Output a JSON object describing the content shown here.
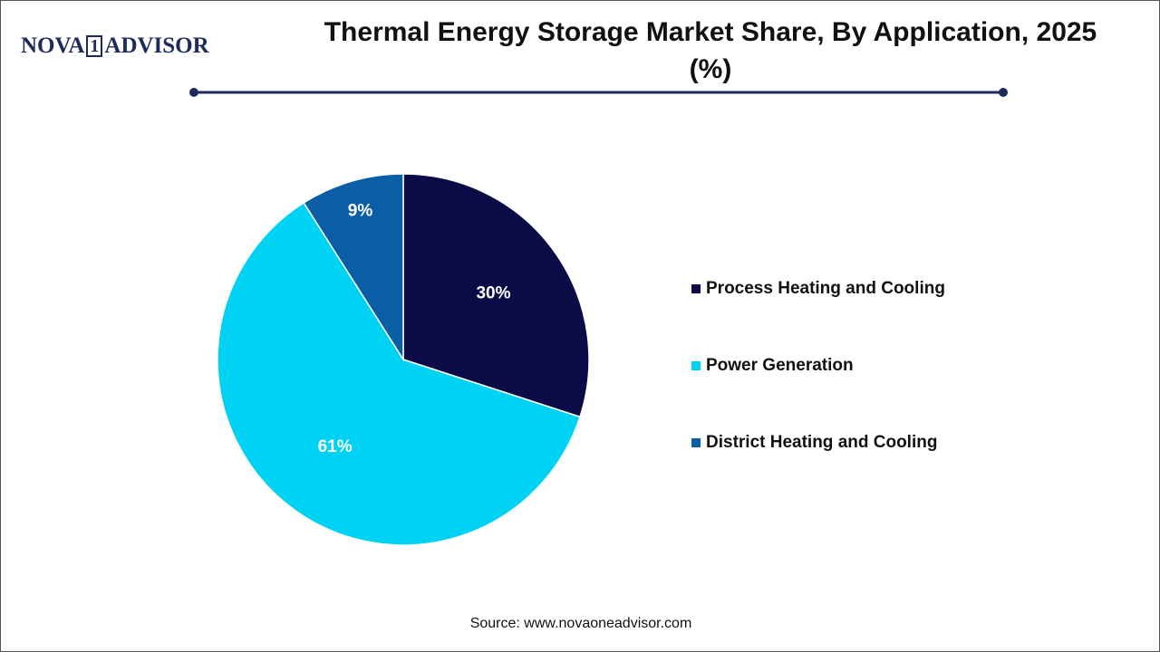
{
  "logo": [
    "NOVA",
    "1",
    "ADVISOR"
  ],
  "chart_data": {
    "type": "pie",
    "title": "Thermal Energy Storage Market Share, By Application, 2025 (%)",
    "categories": [
      "Process Heating and Cooling",
      "Power Generation",
      "District Heating and Cooling"
    ],
    "values": [
      30,
      61,
      9
    ],
    "value_labels": [
      "30%",
      "61%",
      "9%"
    ],
    "colors": [
      "#0b0b48",
      "#00d2f4",
      "#0a5ea6"
    ]
  },
  "source": "Source: www.novaoneadvisor.com"
}
